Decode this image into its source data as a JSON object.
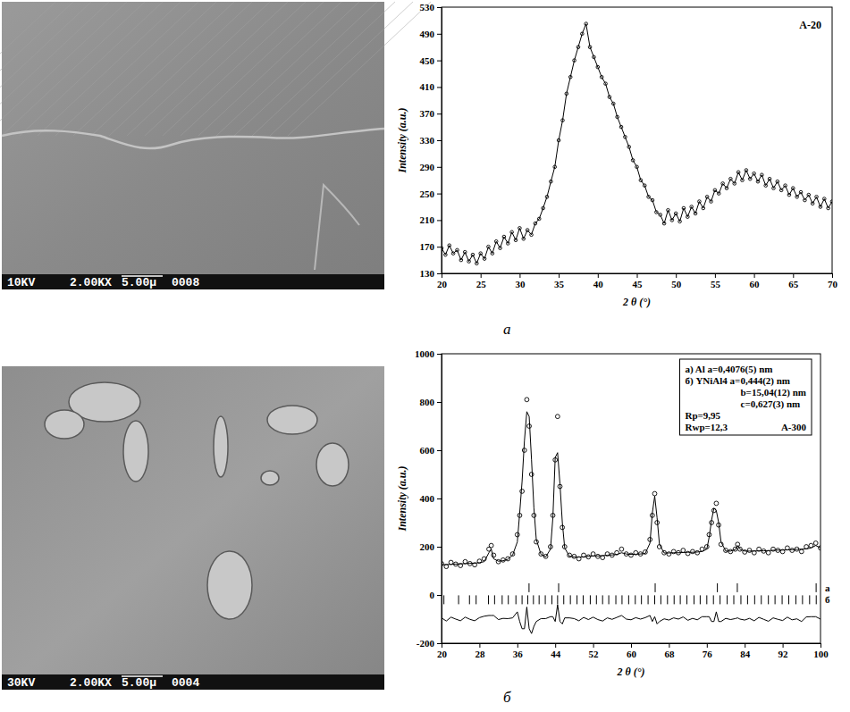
{
  "chart_data": [
    {
      "type": "line",
      "title": "A-20",
      "x_label": "2 θ (°)",
      "y_label": "Intensity (a.u.)",
      "xlim": [
        20,
        70
      ],
      "xticks": [
        20,
        25,
        30,
        35,
        40,
        45,
        50,
        55,
        60,
        65,
        70
      ],
      "ylim": [
        130,
        530
      ],
      "yticks": [
        130,
        170,
        210,
        250,
        290,
        330,
        370,
        410,
        450,
        490,
        530
      ],
      "x": [
        20,
        20.5,
        21,
        21.5,
        22,
        22.5,
        23,
        23.5,
        24,
        24.5,
        25,
        25.5,
        26,
        26.5,
        27,
        27.5,
        28,
        28.5,
        29,
        29.5,
        30,
        30.5,
        31,
        31.5,
        32,
        32.5,
        33,
        33.5,
        34,
        34.5,
        35,
        35.5,
        36,
        36.5,
        37,
        37.5,
        38,
        38.5,
        39,
        39.5,
        40,
        40.5,
        41,
        41.5,
        42,
        42.5,
        43,
        43.5,
        44,
        44.5,
        45,
        45.5,
        46,
        46.5,
        47,
        47.5,
        48,
        48.5,
        49,
        49.5,
        50,
        50.5,
        51,
        51.5,
        52,
        52.5,
        53,
        53.5,
        54,
        54.5,
        55,
        55.5,
        56,
        56.5,
        57,
        57.5,
        58,
        58.5,
        59,
        59.5,
        60,
        60.5,
        61,
        61.5,
        62,
        62.5,
        63,
        63.5,
        64,
        64.5,
        65,
        65.5,
        66,
        66.5,
        67,
        67.5,
        68,
        68.5,
        69,
        69.5,
        70
      ],
      "series": [
        {
          "type": "line",
          "marker": "circle",
          "color": "#000000",
          "values": [
            168,
            158,
            172,
            160,
            165,
            150,
            162,
            148,
            158,
            145,
            160,
            152,
            170,
            160,
            178,
            168,
            185,
            175,
            192,
            180,
            198,
            182,
            195,
            188,
            205,
            212,
            228,
            245,
            268,
            290,
            330,
            360,
            400,
            425,
            450,
            470,
            490,
            505,
            470,
            455,
            440,
            425,
            415,
            395,
            385,
            365,
            350,
            335,
            320,
            300,
            290,
            270,
            262,
            245,
            240,
            222,
            218,
            205,
            225,
            210,
            220,
            208,
            228,
            215,
            230,
            220,
            238,
            228,
            245,
            238,
            255,
            250,
            265,
            258,
            272,
            265,
            282,
            270,
            285,
            272,
            280,
            268,
            278,
            262,
            272,
            258,
            268,
            255,
            262,
            248,
            258,
            245,
            252,
            240,
            248,
            235,
            245,
            230,
            242,
            228,
            238
          ]
        }
      ]
    },
    {
      "type": "line",
      "title": "A-300",
      "x_label": "2 θ (°)",
      "y_label": "Intensity (a.u.)",
      "xlim": [
        20,
        100
      ],
      "xticks": [
        20,
        28,
        36,
        44,
        52,
        60,
        68,
        76,
        84,
        92,
        100
      ],
      "ylim": [
        -200,
        1000
      ],
      "yticks": [
        -200,
        0,
        200,
        400,
        600,
        800,
        1000
      ],
      "annotations": [
        "a) Al a=0,4076(5) nm",
        "б) YNiAl4 a=0,444(2) nm",
        "b=15,04(12) nm",
        "c=0,627(3) nm",
        "Rp=9,95",
        "Rwp=12,3"
      ],
      "x": [
        20,
        21,
        22,
        23,
        24,
        25,
        26,
        27,
        28,
        29,
        30,
        30.5,
        31,
        32,
        33,
        34,
        35,
        36,
        36.5,
        37,
        37.5,
        38,
        38.5,
        39,
        39.5,
        40,
        41,
        42,
        43,
        43.5,
        44,
        44.5,
        45,
        45.5,
        46,
        47,
        48,
        49,
        50,
        51,
        52,
        53,
        54,
        55,
        56,
        57,
        58,
        59,
        60,
        61,
        62,
        63,
        64,
        64.5,
        65,
        65.5,
        66,
        67,
        68,
        69,
        70,
        71,
        72,
        73,
        74,
        75,
        76,
        76.5,
        77,
        77.5,
        78,
        78.5,
        79,
        80,
        81,
        82,
        82.5,
        83,
        84,
        85,
        86,
        87,
        88,
        89,
        90,
        91,
        92,
        93,
        94,
        95,
        96,
        97,
        98,
        99,
        100
      ],
      "series": [
        {
          "type": "scatter",
          "marker": "circle",
          "color": "#000000",
          "values": [
            130,
            118,
            135,
            128,
            122,
            138,
            130,
            125,
            140,
            150,
            190,
            205,
            165,
            138,
            145,
            150,
            170,
            250,
            330,
            430,
            600,
            810,
            700,
            500,
            330,
            220,
            170,
            160,
            200,
            330,
            560,
            740,
            450,
            280,
            200,
            165,
            160,
            150,
            165,
            158,
            170,
            160,
            155,
            170,
            165,
            175,
            190,
            170,
            165,
            175,
            170,
            178,
            230,
            330,
            420,
            300,
            200,
            175,
            170,
            180,
            175,
            185,
            172,
            180,
            175,
            190,
            200,
            250,
            300,
            350,
            380,
            290,
            210,
            185,
            180,
            190,
            210,
            190,
            178,
            185,
            175,
            190,
            182,
            175,
            190,
            185,
            180,
            195,
            185,
            190,
            180,
            200,
            205,
            215,
            195
          ]
        },
        {
          "type": "line",
          "color": "#000000",
          "values": [
            125,
            126,
            127,
            128,
            129,
            130,
            131,
            132,
            134,
            138,
            175,
            190,
            150,
            140,
            142,
            148,
            165,
            220,
            340,
            470,
            640,
            760,
            740,
            560,
            360,
            230,
            168,
            158,
            190,
            320,
            570,
            590,
            460,
            300,
            195,
            160,
            158,
            157,
            158,
            160,
            162,
            162,
            163,
            165,
            166,
            168,
            175,
            170,
            168,
            169,
            170,
            172,
            215,
            340,
            410,
            320,
            210,
            174,
            174,
            175,
            175,
            176,
            177,
            177,
            178,
            180,
            190,
            240,
            310,
            360,
            350,
            300,
            220,
            182,
            182,
            188,
            205,
            190,
            182,
            182,
            182,
            183,
            183,
            184,
            185,
            186,
            186,
            187,
            188,
            189,
            190,
            191,
            195,
            205,
            195
          ]
        },
        {
          "type": "line",
          "color": "#000000",
          "values": [
            -95,
            -108,
            -92,
            -100,
            -107,
            -92,
            -101,
            -107,
            -94,
            -88,
            -85,
            -85,
            -85,
            -102,
            -97,
            -98,
            -95,
            -70,
            -110,
            -140,
            -140,
            -50,
            -140,
            -160,
            -130,
            -110,
            -98,
            -98,
            -90,
            -90,
            -110,
            -40,
            -110,
            -120,
            -95,
            -95,
            -98,
            -107,
            -93,
            -102,
            -92,
            -102,
            -108,
            -95,
            -101,
            -93,
            -85,
            -100,
            -103,
            -94,
            -100,
            -94,
            -85,
            -110,
            -90,
            -120,
            -110,
            -99,
            -104,
            -95,
            -100,
            -91,
            -105,
            -97,
            -103,
            -90,
            -90,
            -90,
            -110,
            -110,
            -70,
            -110,
            -110,
            -97,
            -102,
            -98,
            -95,
            -100,
            -104,
            -97,
            -107,
            -93,
            -101,
            -109,
            -95,
            -101,
            -106,
            -92,
            -103,
            -99,
            -110,
            -91,
            -90,
            -90,
            -100
          ]
        }
      ],
      "reflections": [
        {
          "label": "а",
          "y": 30,
          "x": [
            38.47,
            44.72,
            65.1,
            78.23,
            82.44,
            99.08
          ]
        },
        {
          "label": "б",
          "y": -20,
          "x": [
            20.5,
            23.6,
            25.9,
            27.3,
            29.9,
            31.2,
            32.8,
            34.1,
            35.7,
            37.0,
            38.2,
            39.4,
            40.6,
            41.9,
            43.3,
            44.5,
            45.8,
            47.2,
            48.6,
            49.9,
            51.4,
            52.7,
            54.0,
            55.3,
            56.8,
            58.1,
            59.5,
            60.9,
            62.2,
            63.6,
            65.0,
            66.3,
            67.7,
            69.1,
            70.4,
            71.8,
            73.3,
            74.6,
            76.0,
            77.4,
            78.8,
            80.3,
            81.7,
            83.2,
            84.6,
            86.1,
            87.5,
            89.0,
            90.4,
            91.9,
            93.3,
            94.8,
            96.2,
            97.7,
            99.1
          ]
        }
      ]
    }
  ],
  "images": [
    {
      "caption": [
        "10KV",
        "2.00KX",
        "5.00µ",
        "0008"
      ]
    },
    {
      "caption": [
        "30KV",
        "2.00KX",
        "5.00µ",
        "0004"
      ]
    }
  ],
  "panel_labels": [
    "а",
    "б"
  ]
}
